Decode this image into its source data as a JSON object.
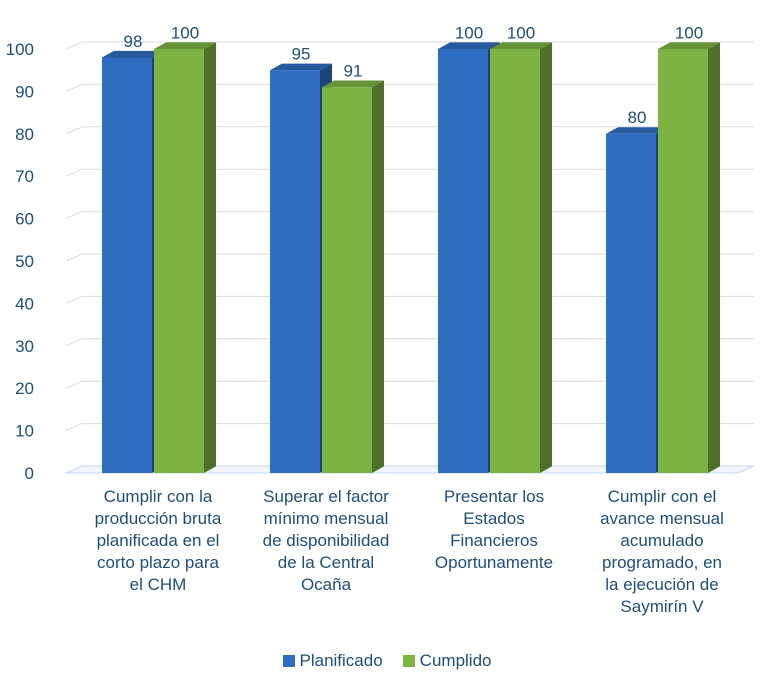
{
  "chart_data": {
    "type": "bar",
    "title": "",
    "categories": [
      "Cumplir con la producción bruta planificada en el corto plazo para el CHM",
      "Superar el factor mínimo mensual de disponibilidad de la Central Ocaña",
      "Presentar los Estados Financieros Oportunamente",
      "Cumplir con el avance mensual acumulado programado, en la ejecución de Saymirín V"
    ],
    "category_lines": [
      [
        "Cumplir con la",
        "producción bruta",
        "planificada en el",
        "corto plazo para",
        "el CHM"
      ],
      [
        "Superar el factor",
        "mínimo mensual",
        "de disponibilidad",
        "de la Central",
        "Ocaña"
      ],
      [
        "Presentar los",
        "Estados",
        "Financieros",
        "Oportunamente"
      ],
      [
        "Cumplir con el",
        "avance mensual",
        "acumulado",
        "programado, en",
        "la ejecución de",
        "Saymirín V"
      ]
    ],
    "series": [
      {
        "name": "Planificado",
        "values": [
          98,
          95,
          100,
          80
        ],
        "color": "#2e6dbf"
      },
      {
        "name": "Cumplido",
        "values": [
          100,
          91,
          100,
          100
        ],
        "color": "#7cb342"
      }
    ],
    "ylim": [
      0,
      100
    ],
    "yticks": [
      0,
      10,
      20,
      30,
      40,
      50,
      60,
      70,
      80,
      90,
      100
    ],
    "grid": true,
    "legend_position": "bottom",
    "style": "3d-column"
  }
}
